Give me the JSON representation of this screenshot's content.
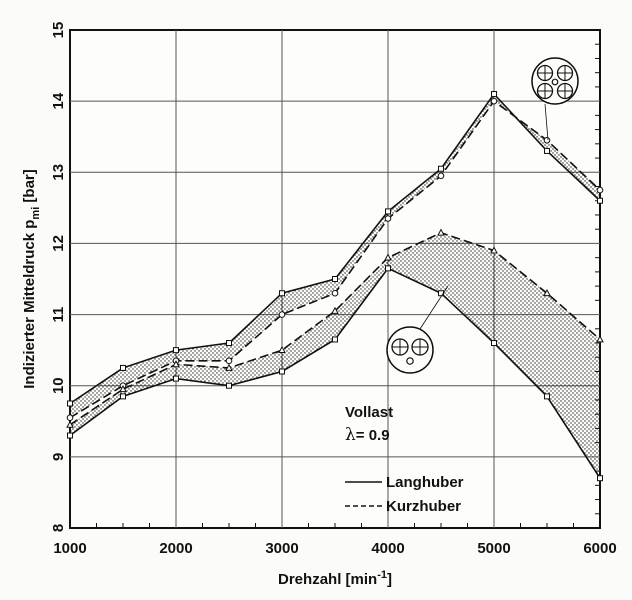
{
  "chart_data": {
    "type": "line",
    "xlabel": "Drehzahl [min",
    "xlabel_sup": "-1",
    "xlabel_end": "]",
    "ylabel": "Indizierter Mitteldruck p",
    "ylabel_sub": "mi",
    "ylabel_end": " [bar]",
    "xlim": [
      1000,
      6000
    ],
    "ylim": [
      8,
      15
    ],
    "xticks": [
      "1000",
      "2000",
      "3000",
      "4000",
      "5000",
      "6000"
    ],
    "yticks": [
      "8",
      "9",
      "10",
      "11",
      "12",
      "13",
      "14",
      "15"
    ],
    "grid": true,
    "annotation_line1": "Vollast",
    "annotation_lambda": "λ",
    "annotation_value": "= 0.9",
    "legend_entries": [
      {
        "label": "Langhuber",
        "style": "solid"
      },
      {
        "label": "Kurzhuber",
        "style": "dashed"
      }
    ],
    "bands": [
      {
        "group": "four-valve",
        "upper": {
          "style": "solid",
          "marker": "square",
          "x": [
            1000,
            1500,
            2000,
            2500,
            3000,
            3500,
            4000,
            4500,
            5000,
            5500,
            6000
          ],
          "y": [
            9.75,
            10.25,
            10.5,
            10.6,
            11.3,
            11.5,
            12.45,
            13.05,
            14.1,
            13.3,
            12.6
          ]
        },
        "lower": {
          "style": "dashed",
          "marker": "circle",
          "x": [
            1000,
            1500,
            2000,
            2500,
            3000,
            3500,
            4000,
            4500,
            5000,
            5500,
            6000
          ],
          "y": [
            9.55,
            10.0,
            10.35,
            10.35,
            11.0,
            11.3,
            12.35,
            12.95,
            14.0,
            13.45,
            12.75
          ]
        }
      },
      {
        "group": "two-valve",
        "upper": {
          "style": "dashed",
          "marker": "triangle",
          "x": [
            1000,
            1500,
            2000,
            2500,
            3000,
            3500,
            4000,
            4500,
            5000,
            5500,
            6000
          ],
          "y": [
            9.45,
            9.95,
            10.3,
            10.25,
            10.5,
            11.05,
            11.8,
            12.15,
            11.9,
            11.3,
            10.65
          ]
        },
        "lower": {
          "style": "solid",
          "marker": "square",
          "x": [
            1000,
            1500,
            2000,
            2500,
            3000,
            3500,
            4000,
            4500,
            5000,
            5500,
            6000
          ],
          "y": [
            9.3,
            9.85,
            10.1,
            10.0,
            10.2,
            10.65,
            11.65,
            11.3,
            10.6,
            9.85,
            8.7
          ]
        }
      }
    ],
    "icons": [
      {
        "name": "four-valve-icon",
        "x": 5550,
        "y": 14.3
      },
      {
        "name": "two-valve-icon",
        "x": 4220,
        "y": 10.5
      }
    ]
  }
}
